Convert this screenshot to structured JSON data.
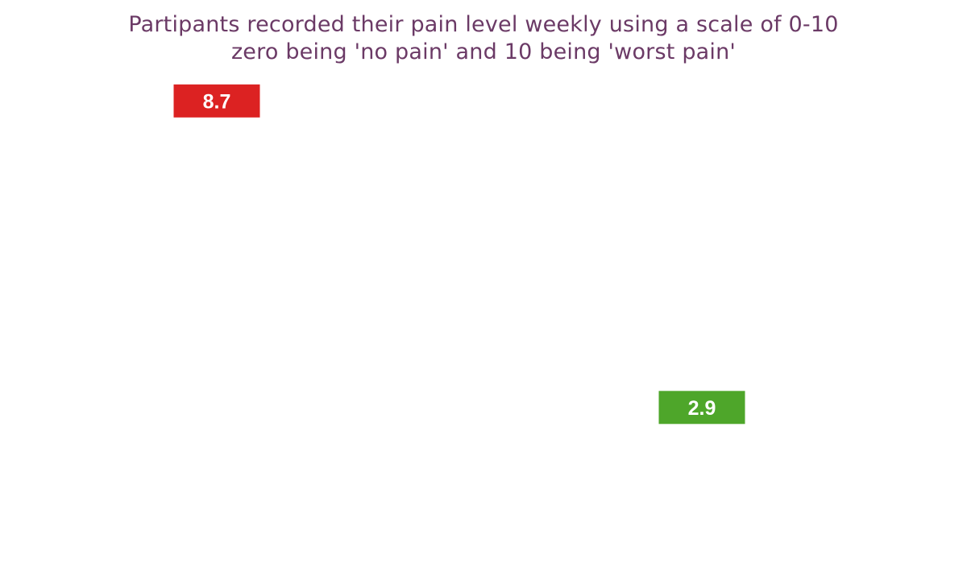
{
  "title_lines": [
    "Partipants recorded their pain level weekly using a scale of 0-10",
    "zero being 'no pain' and 10 being 'worst pain'"
  ],
  "chart_data": {
    "type": "scatter",
    "title": "Partipants recorded their pain level weekly using a scale of 0-10 zero being 'no pain' and 10 being 'worst pain'",
    "xlabel": "",
    "ylabel": "",
    "grid": false,
    "ylim": [
      0,
      10
    ],
    "points": [
      {
        "label": "8.7",
        "value": 8.7,
        "color": "#dc2222"
      },
      {
        "label": "2.9",
        "value": 2.9,
        "color": "#4ea62a"
      }
    ]
  }
}
